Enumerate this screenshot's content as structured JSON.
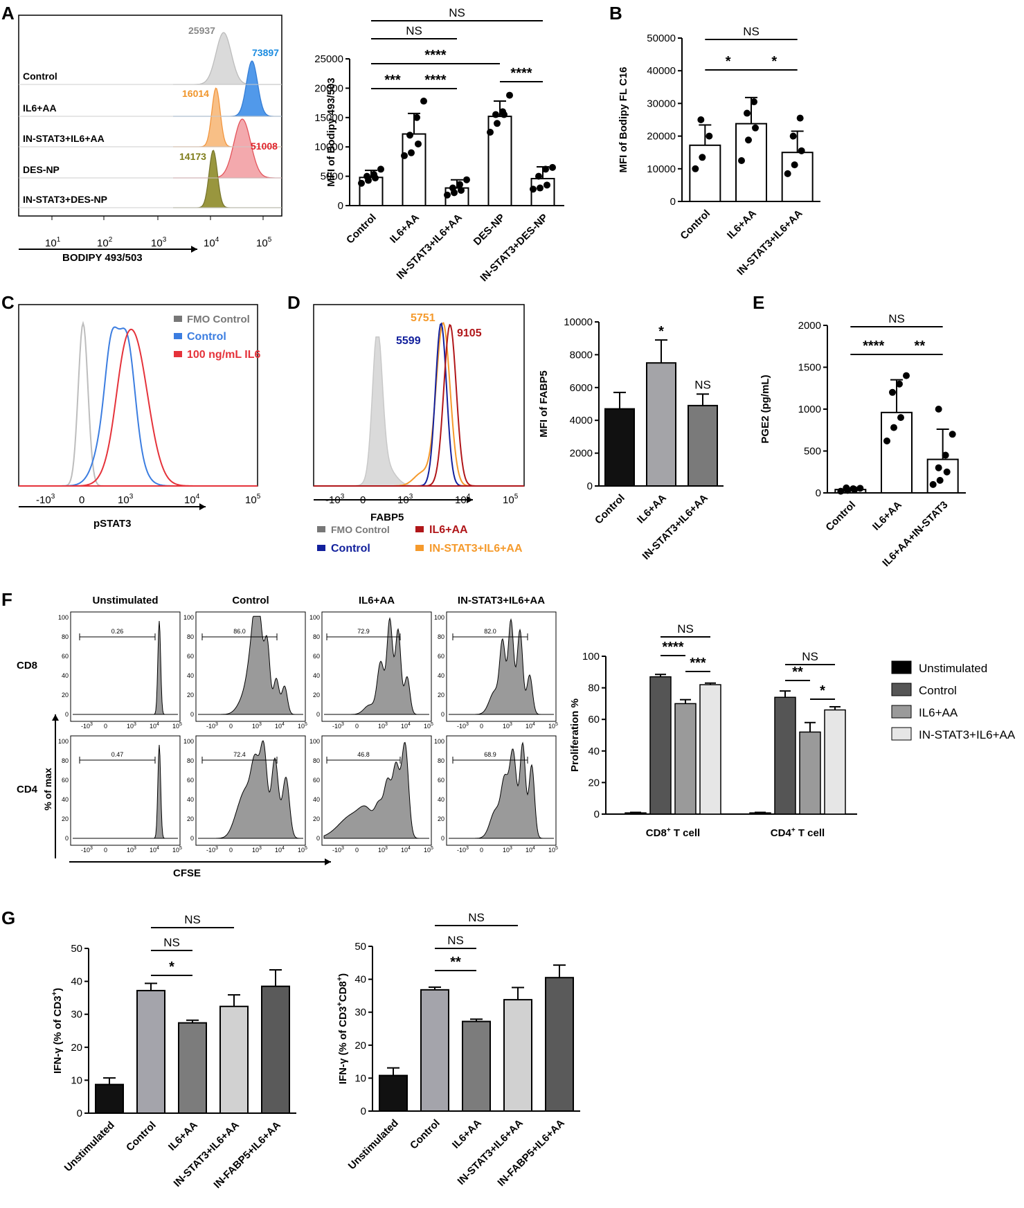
{
  "figure": {
    "bg": "#ffffff"
  },
  "colors": {
    "grey": "#bdbdbd",
    "black": "#111111",
    "blue": "#3b7de0",
    "red": "#e5323a",
    "orange": "#f59a2c",
    "olive": "#7f7d1b",
    "navy": "#12209c",
    "darkred": "#b01619",
    "fmo": "#777777"
  },
  "panelA": {
    "letter": "A",
    "rows": [
      "Control",
      "IL6+AA",
      "IN-STAT3+IL6+AA",
      "DES-NP",
      "IN-STAT3+DES-NP"
    ],
    "peaks": [
      "25937",
      "73897",
      "16014",
      "51008",
      "14173"
    ],
    "xlabel": "BODIPY 493/503",
    "xticks": [
      "10",
      "10",
      "10",
      "10",
      "10"
    ],
    "xexp": [
      "1",
      "2",
      "3",
      "4",
      "5"
    ]
  },
  "panelB": {
    "letter": "B"
  },
  "panelC": {
    "letter": "C",
    "legend": [
      "FMO Control",
      "Control",
      "100 ng/mL IL6"
    ],
    "xlabel": "pSTAT3",
    "xticks": [
      "-10",
      "0",
      "10",
      "10",
      "10"
    ],
    "xexp": [
      "3",
      "",
      "3",
      "4",
      "5"
    ]
  },
  "panelD": {
    "letter": "D",
    "peaks": [
      "5751",
      "5599",
      "9105"
    ],
    "xlabel": "FABP5",
    "xticks": [
      "-10",
      "0",
      "10",
      "10",
      "10"
    ],
    "xexp": [
      "3",
      "",
      "3",
      "4",
      "5"
    ],
    "legend": [
      "FMO Control",
      "IL6+AA",
      "Control",
      "IN-STAT3+IL6+AA"
    ]
  },
  "panelE": {
    "letter": "E"
  },
  "panelF": {
    "letter": "F",
    "col_titles": [
      "Unstimulated",
      "Control",
      "IL6+AA",
      "IN-STAT3+IL6+AA"
    ],
    "row_labels": [
      "CD8",
      "CD4"
    ],
    "gates_cd8": [
      "0.26",
      "86.0",
      "72.9",
      "82.0"
    ],
    "gates_cd4": [
      "0.47",
      "72.4",
      "46.8",
      "68.9"
    ],
    "ylabel": "% of max",
    "xlabel": "CFSE",
    "yticks": [
      "100",
      "80",
      "60",
      "40",
      "20",
      "0"
    ],
    "xticks": [
      "-10",
      "0",
      "10",
      "10",
      "10"
    ],
    "xexp": [
      "3",
      "",
      "3",
      "4",
      "5"
    ],
    "legend": [
      "Unstimulated",
      "Control",
      "IL6+AA",
      "IN-STAT3+IL6+AA"
    ]
  },
  "panelG": {
    "letter": "G"
  },
  "chart_data": [
    {
      "id": "A_bar",
      "type": "bar",
      "title": "",
      "categories": [
        "Control",
        "IL6+AA",
        "IN-STAT3+IL6+AA",
        "DES-NP",
        "IN-STAT3+DES-NP"
      ],
      "values": [
        4800,
        12200,
        3000,
        15200,
        4600
      ],
      "errors": [
        1200,
        3500,
        1400,
        2600,
        2000
      ],
      "points": [
        [
          3800,
          4300,
          4700,
          5000,
          5300,
          6200
        ],
        [
          8500,
          9000,
          10500,
          12000,
          15000,
          17800
        ],
        [
          1800,
          2200,
          2600,
          3000,
          3600,
          4400
        ],
        [
          12500,
          14000,
          15500,
          15500,
          16000,
          18800
        ],
        [
          2800,
          3000,
          3500,
          5000,
          6200,
          6500
        ]
      ],
      "xlabel": "",
      "ylabel": "MFI of Bodipy 493/503",
      "ylim": [
        0,
        25000
      ],
      "yticks": [
        "0",
        "5000",
        "10000",
        "15000",
        "20000",
        "25000"
      ],
      "annotations": [
        "NS",
        "NS",
        "****",
        "***",
        "****",
        "****"
      ]
    },
    {
      "id": "B",
      "type": "bar",
      "title": "",
      "categories": [
        "Control",
        "IL6+AA",
        "IN-STAT3+IL6+AA"
      ],
      "values": [
        17200,
        23800,
        15000
      ],
      "errors": [
        6200,
        8000,
        6500
      ],
      "points": [
        [
          10000,
          13500,
          20000,
          25000
        ],
        [
          12500,
          18800,
          22500,
          27000,
          30500
        ],
        [
          8500,
          11200,
          15500,
          20000,
          25500
        ]
      ],
      "xlabel": "",
      "ylabel": "MFI of  Bodipy FL C16",
      "ylim": [
        0,
        50000
      ],
      "yticks": [
        "0",
        "10000",
        "20000",
        "30000",
        "40000",
        "50000"
      ],
      "annotations": [
        "NS",
        "*",
        "*"
      ]
    },
    {
      "id": "D_bar",
      "type": "bar",
      "title": "",
      "categories": [
        "Control",
        "IL6+AA",
        "IN-STAT3+IL6+AA"
      ],
      "values": [
        4700,
        7500,
        4900
      ],
      "errors": [
        1000,
        1400,
        700
      ],
      "colors": [
        "#111111",
        "#a4a4a8",
        "#7a7a7a"
      ],
      "xlabel": "",
      "ylabel": "MFI of FABP5",
      "ylim": [
        0,
        10000
      ],
      "yticks": [
        "0",
        "2000",
        "4000",
        "6000",
        "8000",
        "10000"
      ],
      "annotations": [
        "*",
        "NS"
      ]
    },
    {
      "id": "E",
      "type": "bar",
      "title": "",
      "categories": [
        "Control",
        "IL6+AA",
        "IL6+AA+IN-STAT3"
      ],
      "values": [
        40,
        960,
        400
      ],
      "errors": [
        20,
        390,
        360
      ],
      "points": [
        [
          20,
          30,
          40,
          45,
          50,
          55,
          60
        ],
        [
          620,
          780,
          900,
          1200,
          1300,
          1400
        ],
        [
          100,
          150,
          250,
          300,
          450,
          700,
          1000
        ]
      ],
      "xlabel": "",
      "ylabel": "PGE2 (pg/mL)",
      "ylim": [
        0,
        2000
      ],
      "yticks": [
        "0",
        "500",
        "1000",
        "1500",
        "2000"
      ],
      "annotations": [
        "NS",
        "****",
        "**"
      ]
    },
    {
      "id": "F_bar",
      "type": "bar",
      "title": "",
      "categories": [
        "CD8+ T cell",
        "CD4+ T cell"
      ],
      "cat_main": [
        "CD8",
        "CD4"
      ],
      "cat_sup": [
        "+",
        "+"
      ],
      "cat_tail": [
        " T cell",
        " T cell"
      ],
      "series": [
        {
          "name": "Unstimulated",
          "values": [
            0.8,
            0.8
          ],
          "errors": [
            0.3,
            0.3
          ],
          "color": "#000000"
        },
        {
          "name": "Control",
          "values": [
            87,
            74
          ],
          "errors": [
            1.5,
            4
          ],
          "color": "#555555"
        },
        {
          "name": "IL6+AA",
          "values": [
            70,
            52
          ],
          "errors": [
            2.5,
            6
          ],
          "color": "#9a9a9a"
        },
        {
          "name": "IN-STAT3+IL6+AA",
          "values": [
            82,
            66
          ],
          "errors": [
            1,
            2
          ],
          "color": "#e6e6e6"
        }
      ],
      "xlabel": "",
      "ylabel": "Proliferation %",
      "ylim": [
        0,
        100
      ],
      "yticks": [
        "0",
        "20",
        "40",
        "60",
        "80",
        "100"
      ],
      "annotations": [
        "NS",
        "****",
        "***",
        "NS",
        "**",
        "*"
      ]
    },
    {
      "id": "G1",
      "type": "bar",
      "title": "",
      "categories": [
        "Unstimulated",
        "Control",
        "IL6+AA",
        "IN-STAT3+IL6+AA",
        "IN-FABP5+IL6+AA"
      ],
      "values": [
        8.7,
        37.2,
        27.4,
        32.4,
        38.5
      ],
      "errors": [
        2,
        2.2,
        0.8,
        3.5,
        5
      ],
      "colors": [
        "#111111",
        "#a4a4ab",
        "#7c7c7c",
        "#d1d1d1",
        "#5a5a5a"
      ],
      "xlabel": "",
      "ylabel_main": "IFN-γ (% of CD3",
      "ylabel_sup": "+",
      "ylabel_tail": ")",
      "ylim": [
        0,
        50
      ],
      "yticks": [
        "0",
        "10",
        "20",
        "30",
        "40",
        "50"
      ],
      "annotations": [
        "NS",
        "NS",
        "*"
      ]
    },
    {
      "id": "G2",
      "type": "bar",
      "title": "",
      "categories": [
        "Unstimulated",
        "Control",
        "IL6+AA",
        "IN-STAT3+IL6+AA",
        "IN-FABP5+IL6+AA"
      ],
      "values": [
        10.8,
        36.8,
        27.2,
        33.8,
        40.5
      ],
      "errors": [
        2.3,
        0.8,
        0.7,
        3.7,
        3.8
      ],
      "colors": [
        "#111111",
        "#a4a4ab",
        "#7c7c7c",
        "#d1d1d1",
        "#5a5a5a"
      ],
      "xlabel": "",
      "ylabel_main": "IFN-γ (% of CD3",
      "ylabel_sup": "+",
      "ylabel_mid": "CD8",
      "ylabel_sup2": "+",
      "ylabel_tail": ")",
      "ylim": [
        0,
        50
      ],
      "yticks": [
        "0",
        "10",
        "20",
        "30",
        "40",
        "50"
      ],
      "annotations": [
        "NS",
        "NS",
        "**"
      ]
    }
  ]
}
